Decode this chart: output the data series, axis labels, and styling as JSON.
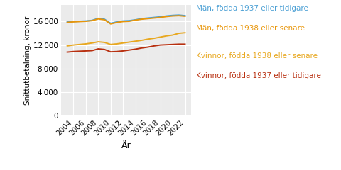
{
  "years": [
    2003,
    2004,
    2005,
    2006,
    2007,
    2008,
    2009,
    2010,
    2011,
    2012,
    2013,
    2014,
    2015,
    2016,
    2017,
    2018,
    2019,
    2020,
    2021,
    2022
  ],
  "man_1937": [
    15950,
    16000,
    16050,
    16100,
    16200,
    16550,
    16400,
    15700,
    15950,
    16100,
    16150,
    16300,
    16500,
    16600,
    16700,
    16800,
    16950,
    17050,
    17100,
    17000
  ],
  "man_1938": [
    15850,
    15950,
    16000,
    16050,
    16150,
    16450,
    16300,
    15600,
    15850,
    16000,
    16050,
    16250,
    16400,
    16500,
    16600,
    16700,
    16850,
    16950,
    17000,
    16900
  ],
  "kvinna_1938": [
    11850,
    12000,
    12100,
    12200,
    12350,
    12550,
    12450,
    12100,
    12200,
    12350,
    12500,
    12650,
    12800,
    13000,
    13150,
    13350,
    13550,
    13700,
    14000,
    14100
  ],
  "kvinna_1937": [
    10800,
    10900,
    10950,
    11000,
    11050,
    11350,
    11250,
    10850,
    10900,
    11000,
    11150,
    11300,
    11500,
    11650,
    11850,
    12000,
    12050,
    12100,
    12150,
    12150
  ],
  "color_man_1937": "#4a9fd4",
  "color_man_1938": "#e8960a",
  "color_kvinna_1938": "#e8a820",
  "color_kvinna_1937": "#b83010",
  "legend_man_1937": "Män, födda 1937 eller tidigare",
  "legend_man_1938": "Män, födda 1938 eller senare",
  "legend_kvinna_1938": "Kvinnor, födda 1938 eller senare",
  "legend_kvinna_1937": "Kvinnor, födda 1937 eller tidigare",
  "ylabel": "Snittutbetalning, kronor",
  "xlabel": "År",
  "yticks": [
    0,
    4000,
    8000,
    12000,
    16000
  ],
  "ylim": [
    0,
    18800
  ],
  "xtick_years": [
    2004,
    2006,
    2008,
    2010,
    2012,
    2014,
    2016,
    2018,
    2020,
    2022
  ],
  "plot_bg_color": "#ebebeb",
  "fig_bg_color": "#ffffff",
  "line_width": 1.4,
  "grid_color": "#ffffff",
  "tick_fontsize": 7.5,
  "legend_fontsize": 7.5,
  "ylabel_fontsize": 7.5,
  "xlabel_fontsize": 9
}
